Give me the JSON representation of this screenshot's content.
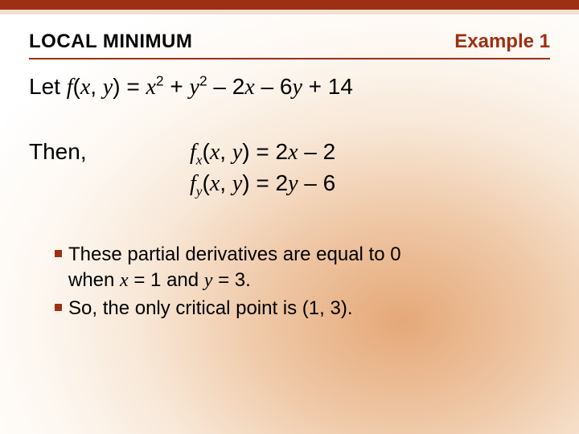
{
  "colors": {
    "accent": "#9d2f12",
    "top_strip_2": "#f3ded0",
    "text": "#000000",
    "bg_gradient_inner": "#e5a878",
    "bg_gradient_mid": "#efc9a8",
    "bg_gradient_outer": "#ffffff"
  },
  "typography": {
    "body_family": "Arial",
    "math_family": "Times New Roman",
    "title_size_pt": 24,
    "example_size_pt": 24,
    "main_size_pt": 28,
    "bullet_size_pt": 24
  },
  "header": {
    "section_title": "LOCAL MINIMUM",
    "example_label": "Example 1"
  },
  "definition": {
    "prefix": "Let ",
    "func_name": "f",
    "open": "(",
    "var1": "x",
    "comma": ", ",
    "var2": "y",
    "close": ") = ",
    "t1_var": "x",
    "t1_exp": "2",
    "plus": " + ",
    "t2_var": "y",
    "t2_exp": "2",
    "m1": " – 2",
    "t3_var": "x",
    "m2": " – 6",
    "t4_var": "y",
    "const_tail": " + 14"
  },
  "then": {
    "label": "Then,",
    "eq1": {
      "fn": "f",
      "sub": "x",
      "open": "(",
      "v1": "x",
      "comma": ", ",
      "v2": "y",
      "close": ") = 2",
      "rhs_var": "x",
      "tail": " – 2"
    },
    "eq2": {
      "fn": "f",
      "sub": "y",
      "open": "(",
      "v1": "x",
      "comma": ", ",
      "v2": "y",
      "close": ") = 2",
      "rhs_var": "y",
      "tail": " – 6"
    }
  },
  "bullets": {
    "b1": {
      "p1": "These partial derivatives are equal to 0",
      "p2a": "when ",
      "xv": "x",
      "p2b": " = 1 and ",
      "yv": "y",
      "p2c": " = 3."
    },
    "b2": {
      "text": "So, the only critical point is (1,  3)."
    }
  }
}
